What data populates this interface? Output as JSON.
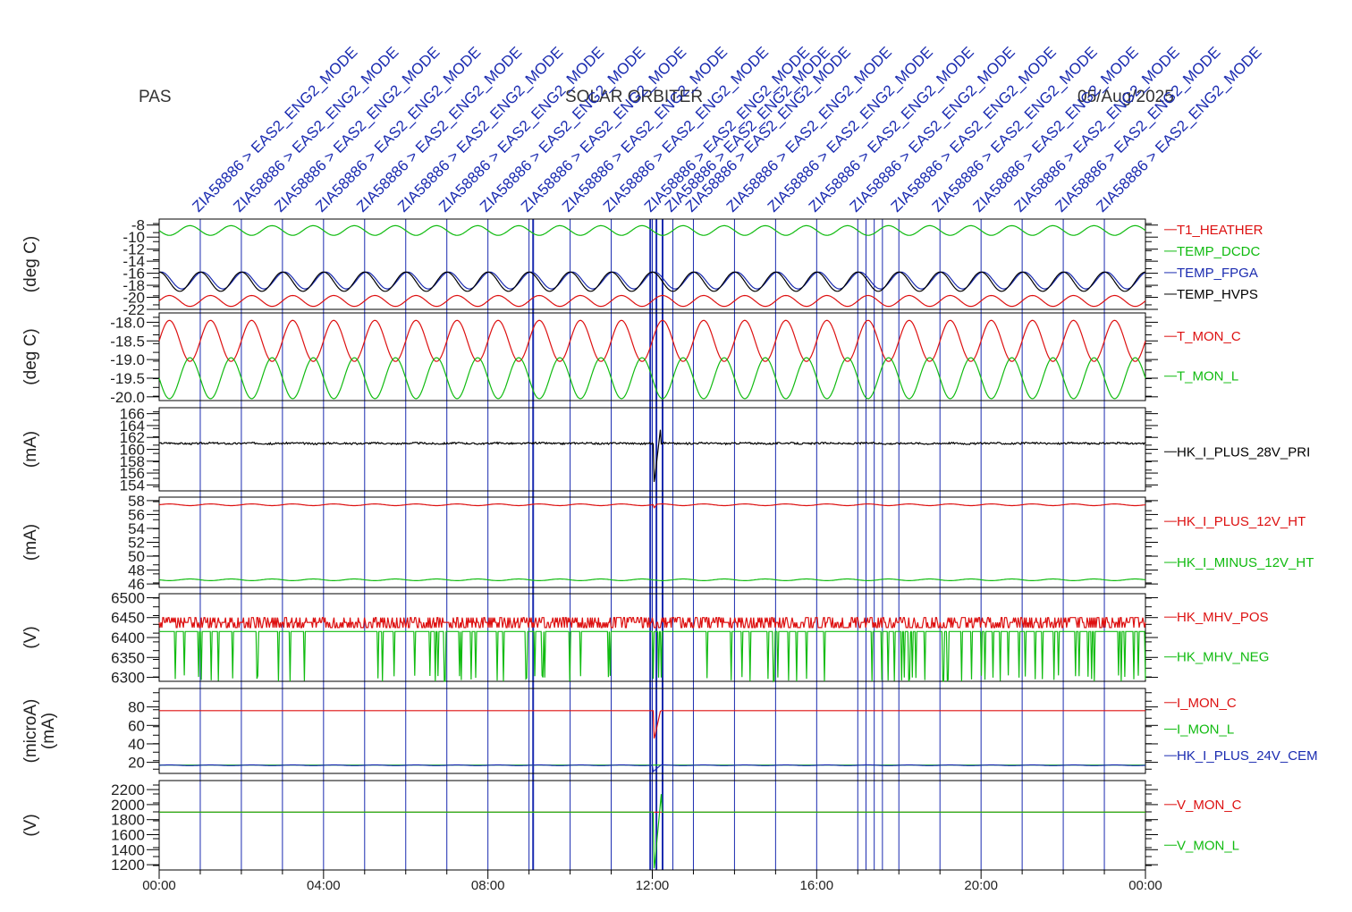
{
  "header": {
    "left": "PAS",
    "center": "SOLAR ORBITER",
    "right": "05/Aug/2025"
  },
  "colors": {
    "red": "#dd1111",
    "green": "#11bb11",
    "blue": "#1a2bb0",
    "black": "#000000",
    "event_line": "#1a2bb0"
  },
  "chart_data": {
    "type": "line",
    "time_axis": {
      "ticks": [
        "00:00",
        "04:00",
        "08:00",
        "12:00",
        "16:00",
        "20:00",
        "00:00"
      ],
      "range_hours": [
        0,
        24
      ]
    },
    "events": [
      {
        "hour": 1.0,
        "label": "ZIA58886 > EAS2_ENG2_MODE"
      },
      {
        "hour": 2.0,
        "label": "ZIA58886 > EAS2_ENG2_MODE"
      },
      {
        "hour": 3.0,
        "label": "ZIA58886 > EAS2_ENG2_MODE"
      },
      {
        "hour": 4.0,
        "label": "ZIA58886 > EAS2_ENG2_MODE"
      },
      {
        "hour": 5.0,
        "label": "ZIA58886 > EAS2_ENG2_MODE"
      },
      {
        "hour": 6.0,
        "label": "ZIA58886 > EAS2_ENG2_MODE"
      },
      {
        "hour": 7.0,
        "label": "ZIA58886 > EAS2_ENG2_MODE"
      },
      {
        "hour": 8.0,
        "label": "ZIA58886 > EAS2_ENG2_MODE"
      },
      {
        "hour": 9.0,
        "label": "ZIA58886 > EAS2_ENG2_MODE"
      },
      {
        "hour": 10.0,
        "label": "ZIA58886 > EAS2_ENG2_MODE"
      },
      {
        "hour": 11.0,
        "label": "ZIA58886 > EAS2_ENG2_MODE"
      },
      {
        "hour": 12.0,
        "label": "ZIA58886 > EAS2_ENG2_MODE"
      },
      {
        "hour": 12.5,
        "label": "ZIA58886 > EAS2_ENG2_MODE"
      },
      {
        "hour": 13.0,
        "label": "ZIA58886 > EAS2_ENG2_MODE"
      },
      {
        "hour": 14.0,
        "label": "ZIA58886 > EAS2_ENG2_MODE"
      },
      {
        "hour": 15.0,
        "label": "ZIA58886 > EAS2_ENG2_MODE"
      },
      {
        "hour": 16.0,
        "label": "ZIA58886 > EAS2_ENG2_MODE"
      },
      {
        "hour": 17.0,
        "label": "ZIA58886 > EAS2_ENG2_MODE"
      },
      {
        "hour": 18.0,
        "label": "ZIA58886 > EAS2_ENG2_MODE"
      },
      {
        "hour": 19.0,
        "label": "ZIA58886 > EAS2_ENG2_MODE"
      },
      {
        "hour": 20.0,
        "label": "ZIA58886 > EAS2_ENG2_MODE"
      },
      {
        "hour": 21.0,
        "label": "ZIA58886 > EAS2_ENG2_MODE"
      },
      {
        "hour": 22.0,
        "label": "ZIA58886 > EAS2_ENG2_MODE"
      },
      {
        "hour": 23.0,
        "label": "ZIA58886 > EAS2_ENG2_MODE"
      }
    ],
    "panels": [
      {
        "ylabel": "(deg C)",
        "ylim": [
          -22,
          -7
        ],
        "yticks": [
          "-8",
          "-10",
          "-12",
          "-14",
          "-16",
          "-18",
          "-20",
          "-22"
        ],
        "ytick_values": [
          -8,
          -10,
          -12,
          -14,
          -16,
          -18,
          -20,
          -22
        ],
        "series": [
          {
            "name": "T1_HEATHER",
            "color": "red",
            "base": -20.6,
            "amp": 0.9,
            "period_h": 1.0,
            "phase": 0.0,
            "noise": 0.0
          },
          {
            "name": "TEMP_DCDC",
            "color": "green",
            "base": -8.9,
            "amp": 0.8,
            "period_h": 1.0,
            "phase": 0.5,
            "noise": 0.0
          },
          {
            "name": "TEMP_FPGA",
            "color": "blue",
            "base": -17.2,
            "amp": 1.4,
            "period_h": 1.0,
            "phase": 0.2,
            "noise": 0.0
          },
          {
            "name": "TEMP_HVPS",
            "color": "black",
            "base": -17.4,
            "amp": 1.6,
            "period_h": 1.0,
            "phase": 0.25,
            "noise": 0.0
          }
        ]
      },
      {
        "ylabel": "(deg C)",
        "ylim": [
          -20.1,
          -17.75
        ],
        "yticks": [
          "-18.0",
          "-18.5",
          "-19.0",
          "-19.5",
          "-20.0"
        ],
        "ytick_values": [
          -18.0,
          -18.5,
          -19.0,
          -19.5,
          -20.0
        ],
        "series": [
          {
            "name": "T_MON_C",
            "color": "red",
            "base": -18.5,
            "amp": 0.55,
            "period_h": 1.0,
            "phase": 0.0,
            "noise": 0.0
          },
          {
            "name": "T_MON_L",
            "color": "green",
            "base": -19.5,
            "amp": 0.55,
            "period_h": 1.0,
            "phase": 0.5,
            "noise": 0.0
          }
        ]
      },
      {
        "ylabel": "(mA)",
        "ylim": [
          153,
          167
        ],
        "yticks": [
          "166",
          "164",
          "162",
          "160",
          "158",
          "156",
          "154"
        ],
        "ytick_values": [
          166,
          164,
          162,
          160,
          158,
          156,
          154
        ],
        "series": [
          {
            "name": "HK_I_PLUS_28V_PRI",
            "color": "black",
            "base": 161.0,
            "amp": 0.05,
            "period_h": 1.0,
            "phase": 0.0,
            "noise": 0.15,
            "spike": [
              12.05,
              154.5,
              12.2,
              163.5
            ]
          }
        ]
      },
      {
        "ylabel": "(mA)",
        "ylim": [
          45.5,
          58.5
        ],
        "yticks": [
          "58",
          "56",
          "54",
          "52",
          "50",
          "48",
          "46"
        ],
        "ytick_values": [
          58,
          56,
          54,
          52,
          50,
          48,
          46
        ],
        "series": [
          {
            "name": "HK_I_PLUS_12V_HT",
            "color": "red",
            "base": 57.4,
            "amp": 0.12,
            "period_h": 1.0,
            "phase": 0.0,
            "noise": 0.0,
            "spike": [
              12.05,
              57.0,
              12.1,
              57.4
            ]
          },
          {
            "name": "HK_I_MINUS_12V_HT",
            "color": "green",
            "base": 46.6,
            "amp": 0.12,
            "period_h": 1.0,
            "phase": 0.5,
            "noise": 0.0
          }
        ]
      },
      {
        "ylabel": "(V)",
        "ylim": [
          6290,
          6510
        ],
        "yticks": [
          "6500",
          "6450",
          "6400",
          "6350",
          "6300"
        ],
        "ytick_values": [
          6500,
          6450,
          6400,
          6350,
          6300
        ],
        "series": [
          {
            "name": "HK_MHV_POS",
            "color": "red",
            "base": 6450,
            "amp": 0,
            "period_h": 1.0,
            "phase": 0.0,
            "noise": 0,
            "step": 12,
            "drops": 0.35,
            "drop_to": 6425
          },
          {
            "name": "HK_MHV_NEG",
            "color": "green",
            "base": 6415,
            "amp": 0,
            "period_h": 1.0,
            "phase": 0.0,
            "noise": 0,
            "step": 0,
            "drops": 0.08,
            "drop_to": 6305
          }
        ]
      },
      {
        "ylabel": "(microA)\n(mA)",
        "ylim": [
          8,
          100
        ],
        "yticks": [
          "80",
          "60",
          "40",
          "20"
        ],
        "ytick_values": [
          80,
          60,
          40,
          20
        ],
        "series": [
          {
            "name": "I_MON_C",
            "color": "red",
            "base": 76,
            "amp": 0,
            "period_h": 1.0,
            "phase": 0.0,
            "noise": 0,
            "spike": [
              12.05,
              46,
              12.2,
              76
            ]
          },
          {
            "name": "I_MON_L",
            "color": "green",
            "base": 17,
            "amp": 0,
            "period_h": 1.0,
            "phase": 0.0,
            "noise": 0
          },
          {
            "name": "HK_I_PLUS_24V_CEM",
            "color": "blue",
            "base": 16.8,
            "amp": 0.4,
            "period_h": 1.0,
            "phase": 0.0,
            "noise": 0,
            "spike": [
              12.02,
              10,
              12.2,
              16.8
            ]
          }
        ]
      },
      {
        "ylabel": "(V)",
        "ylim": [
          1130,
          2320
        ],
        "yticks": [
          "2200",
          "2000",
          "1800",
          "1600",
          "1400",
          "1200"
        ],
        "ytick_values": [
          2200,
          2000,
          1800,
          1600,
          1400,
          1200
        ],
        "series": [
          {
            "name": "V_MON_C",
            "color": "red",
            "base": 1900,
            "amp": 0,
            "period_h": 1.0,
            "phase": 0.0,
            "noise": 0
          },
          {
            "name": "V_MON_L",
            "color": "green",
            "base": 1900,
            "amp": 0,
            "period_h": 1.0,
            "phase": 0.0,
            "noise": 0,
            "spike": [
              12.05,
              1150,
              12.22,
              2150
            ]
          }
        ]
      }
    ]
  }
}
